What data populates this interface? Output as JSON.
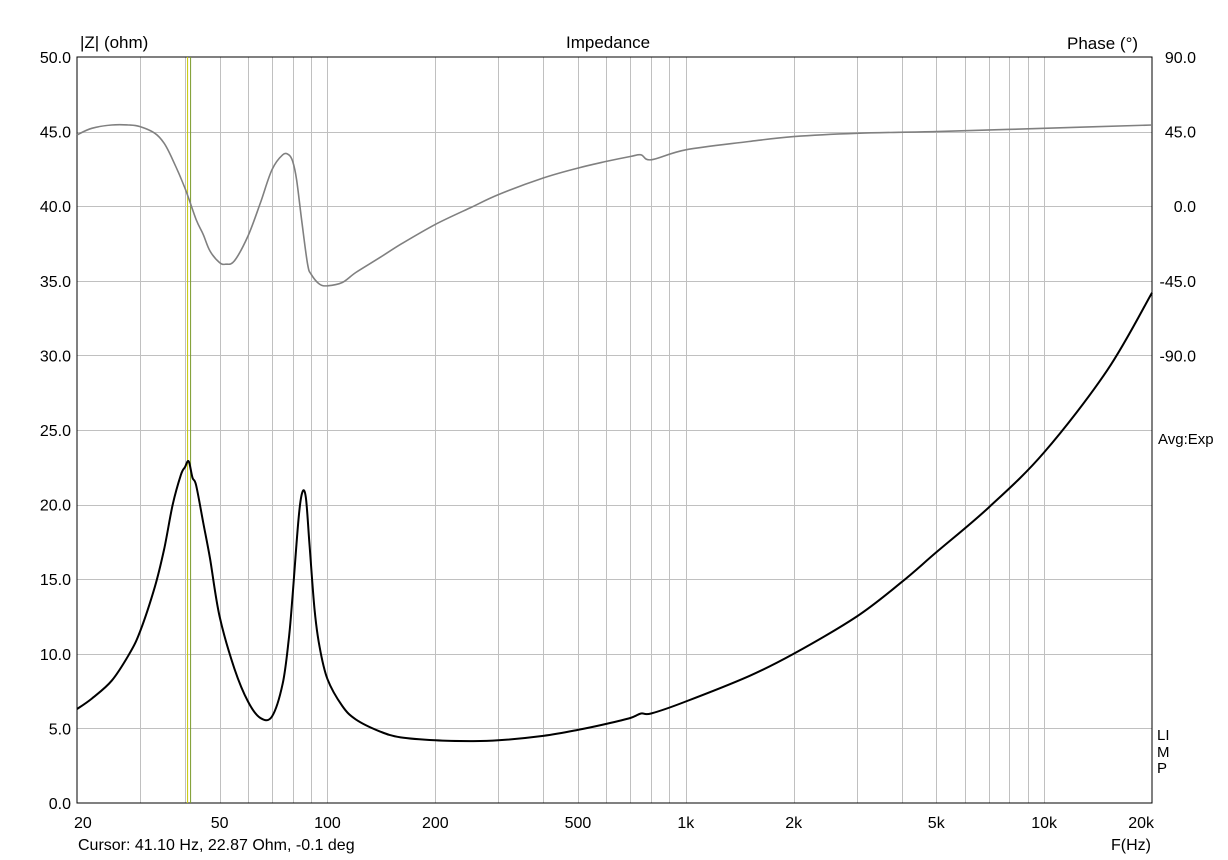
{
  "chart_data": {
    "type": "line",
    "title": "Impedance",
    "ylabel_left": "|Z| (ohm)",
    "ylabel_right": "Phase (°)",
    "xlabel": "F(Hz)",
    "x_scale": "log",
    "xlim": [
      20,
      20000
    ],
    "ylim_left": [
      0,
      50
    ],
    "ylim_right_visible_ticks": [
      -90,
      90
    ],
    "phase_scale": "left value 40.0 = 0 deg; 5 ohm per 45 deg",
    "x_tick_labels": [
      "20",
      "50",
      "100",
      "200",
      "500",
      "1k",
      "2k",
      "5k",
      "10k",
      "20k"
    ],
    "x_tick_values": [
      20,
      50,
      100,
      200,
      500,
      1000,
      2000,
      5000,
      10000,
      20000
    ],
    "left_tick_labels": [
      "0.0",
      "5.0",
      "10.0",
      "15.0",
      "20.0",
      "25.0",
      "30.0",
      "35.0",
      "40.0",
      "45.0",
      "50.0"
    ],
    "left_tick_values": [
      0,
      5,
      10,
      15,
      20,
      25,
      30,
      35,
      40,
      45,
      50
    ],
    "right_tick_labels": [
      "90.0",
      "45.0",
      "0.0",
      "-45.0",
      "-90.0"
    ],
    "right_tick_values": [
      90,
      45,
      0,
      -45,
      -90
    ],
    "grid": true,
    "averaging_label": "Avg:Exp",
    "curve_type_label": "LIMP",
    "cursor_readout": "Cursor: 41.10 Hz, 22.87 Ohm, -0.1 deg",
    "cursor_freq_hz": 41.1,
    "series": [
      {
        "name": "|Z|",
        "axis": "left",
        "color": "#000000",
        "x": [
          20,
          22,
          25,
          28,
          30,
          33,
          35,
          37,
          39,
          40,
          41,
          42,
          43,
          45,
          47,
          50,
          55,
          60,
          65,
          70,
          75,
          78,
          80,
          83,
          85,
          87,
          89,
          92,
          95,
          100,
          110,
          120,
          140,
          160,
          200,
          250,
          300,
          400,
          500,
          600,
          700,
          750,
          800,
          1000,
          1500,
          2000,
          3000,
          4000,
          5000,
          7000,
          10000,
          15000,
          20000
        ],
        "values": [
          6.3,
          7.0,
          8.2,
          10.0,
          11.5,
          14.5,
          17.0,
          20.0,
          22.0,
          22.5,
          22.9,
          21.8,
          21.3,
          18.8,
          16.4,
          12.5,
          9.0,
          6.8,
          5.7,
          5.8,
          8.0,
          11.0,
          14.0,
          19.0,
          20.8,
          20.5,
          17.5,
          13.0,
          10.5,
          8.3,
          6.5,
          5.6,
          4.8,
          4.4,
          4.2,
          4.15,
          4.2,
          4.5,
          4.9,
          5.3,
          5.7,
          6.0,
          6.0,
          6.8,
          8.5,
          10.0,
          12.5,
          14.8,
          16.8,
          19.8,
          23.5,
          29.0,
          34.2
        ]
      },
      {
        "name": "Phase",
        "axis": "right",
        "color": "#808080",
        "x": [
          20,
          22,
          25,
          28,
          30,
          33,
          35,
          37,
          40,
          43,
          45,
          47,
          50,
          52,
          55,
          60,
          65,
          70,
          75,
          78,
          80,
          82,
          85,
          88,
          90,
          95,
          100,
          110,
          120,
          140,
          160,
          200,
          250,
          300,
          400,
          500,
          600,
          700,
          750,
          800,
          1000,
          1500,
          2000,
          3000,
          5000,
          10000,
          20000
        ],
        "values": [
          43,
          47,
          49,
          49,
          48,
          44,
          38,
          28,
          11,
          -8,
          -17,
          -27,
          -34,
          -35,
          -33,
          -18,
          2,
          22,
          31,
          31,
          27,
          16,
          -11,
          -35,
          -41,
          -47,
          -48,
          -46,
          -40,
          -31,
          -23,
          -11,
          -1,
          7,
          17,
          23,
          27,
          30,
          31,
          28,
          34,
          39,
          42,
          44,
          45,
          47,
          49
        ]
      }
    ]
  }
}
